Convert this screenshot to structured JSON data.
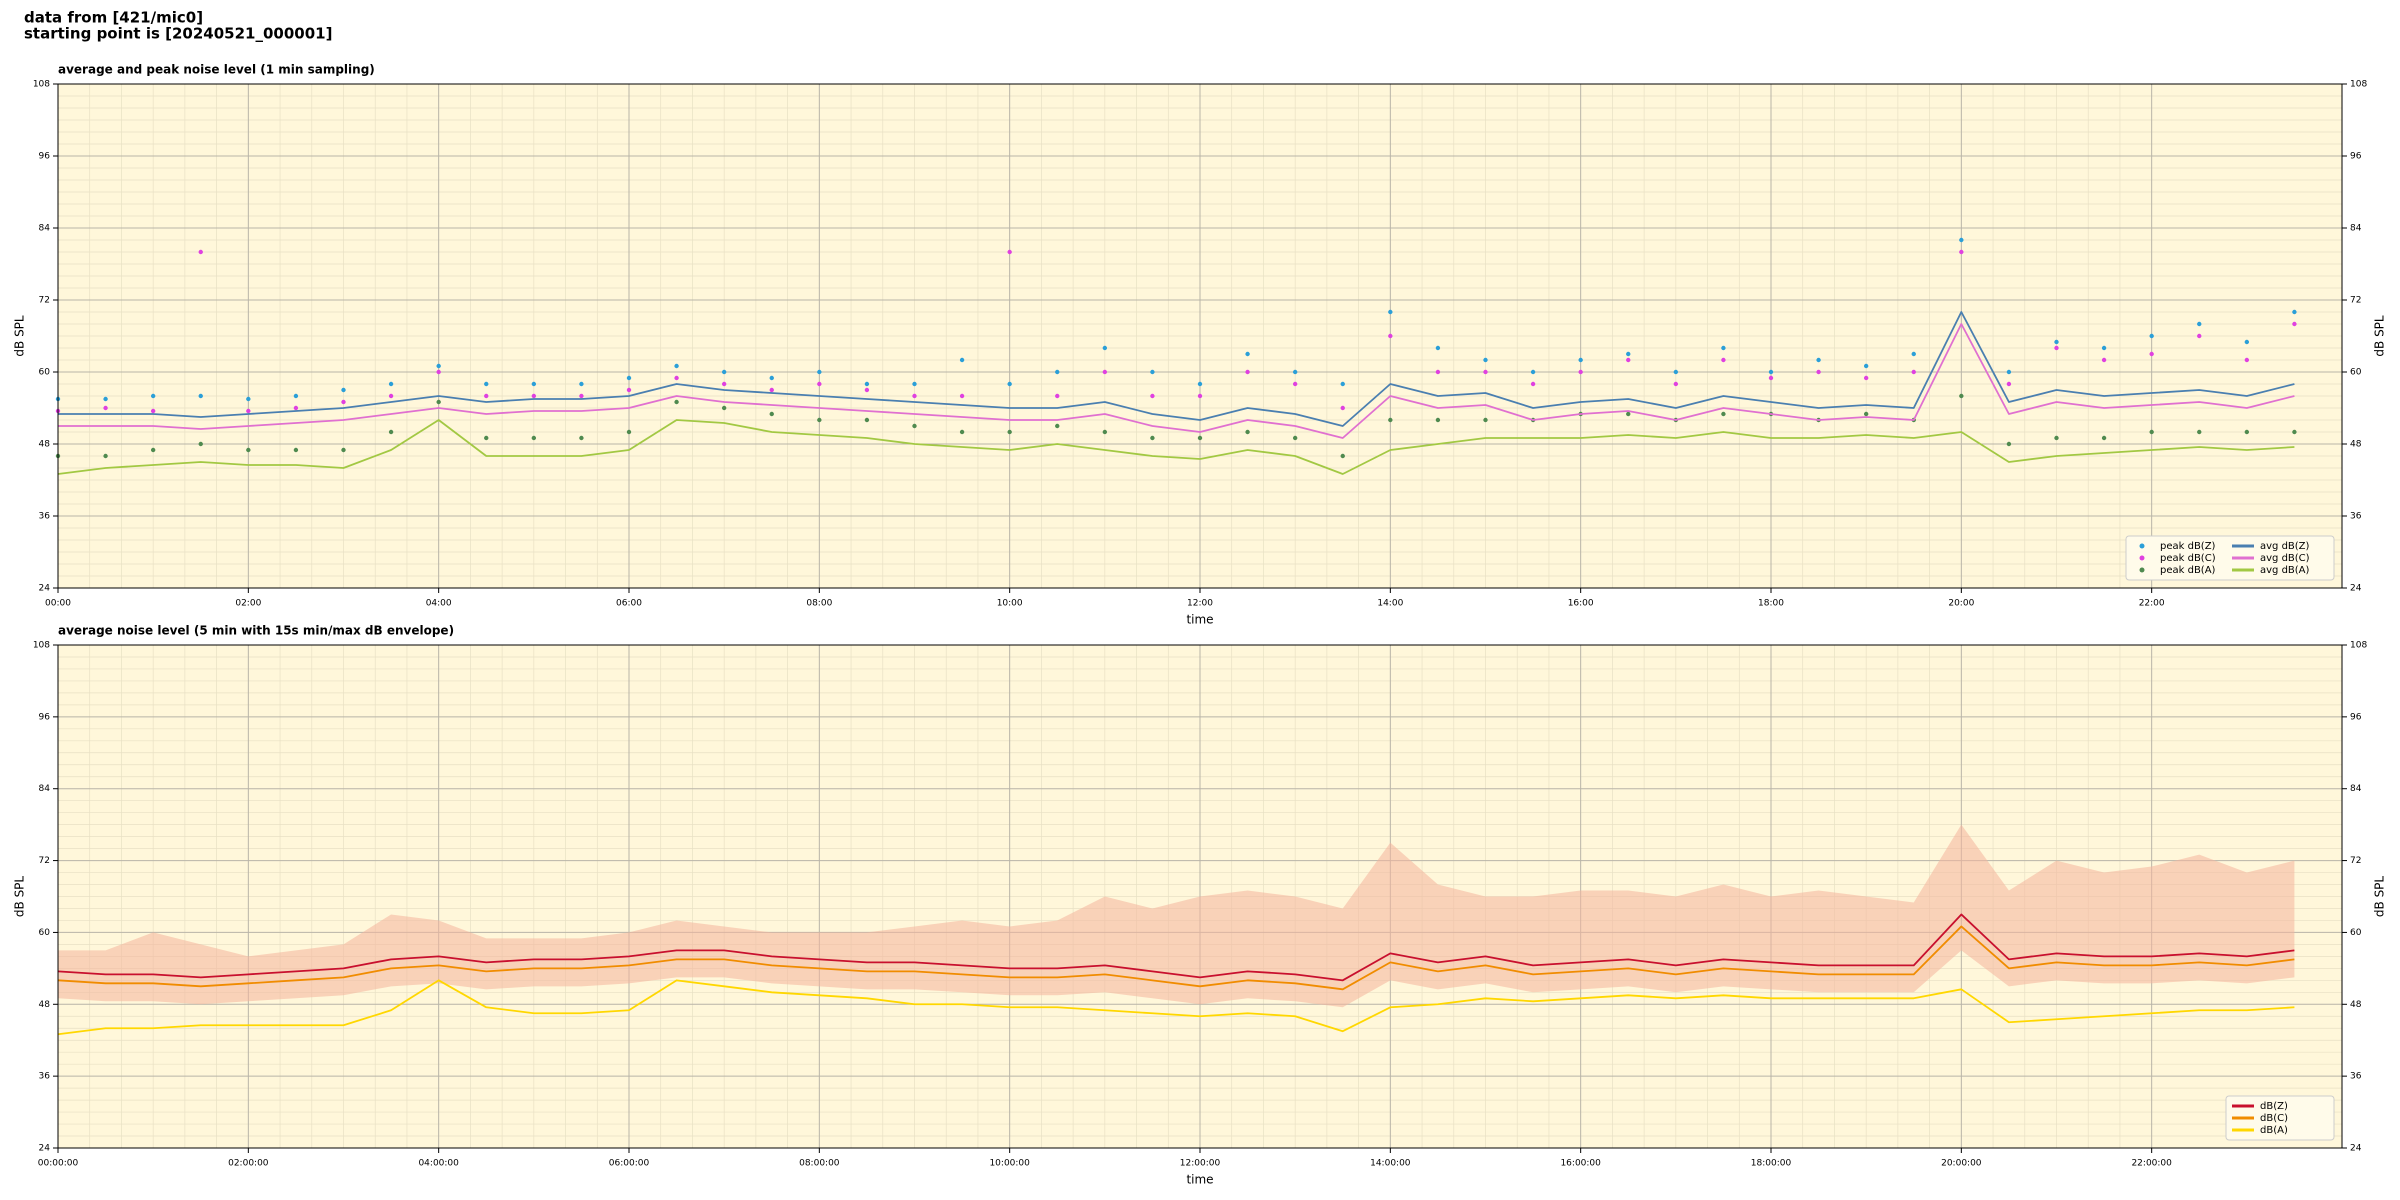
{
  "header": {
    "lines": [
      "data from [421/mic0]",
      "starting point is [20240521_000001]"
    ]
  },
  "chart_data": [
    {
      "type": "line",
      "title": "average and peak noise level (1 min sampling)",
      "xlabel": "time",
      "ylabel": "dB SPL",
      "x": [
        0,
        0.5,
        1,
        1.5,
        2,
        2.5,
        3,
        3.5,
        4,
        4.5,
        5,
        5.5,
        6,
        6.5,
        7,
        7.5,
        8,
        8.5,
        9,
        9.5,
        10,
        10.5,
        11,
        11.5,
        12,
        12.5,
        13,
        13.5,
        14,
        14.5,
        15,
        15.5,
        16,
        16.5,
        17,
        17.5,
        18,
        18.5,
        19,
        19.5,
        20,
        20.5,
        21,
        21.5,
        22,
        22.5,
        23,
        23.5
      ],
      "xlim": [
        0,
        24
      ],
      "xticks": [
        {
          "value": 0,
          "label": "00:00"
        },
        {
          "value": 2,
          "label": "02:00"
        },
        {
          "value": 4,
          "label": "04:00"
        },
        {
          "value": 6,
          "label": "06:00"
        },
        {
          "value": 8,
          "label": "08:00"
        },
        {
          "value": 10,
          "label": "10:00"
        },
        {
          "value": 12,
          "label": "12:00"
        },
        {
          "value": 14,
          "label": "14:00"
        },
        {
          "value": 16,
          "label": "16:00"
        },
        {
          "value": 18,
          "label": "18:00"
        },
        {
          "value": 20,
          "label": "20:00"
        },
        {
          "value": 22,
          "label": "22:00"
        }
      ],
      "ylim": [
        24,
        108
      ],
      "yticks": [
        24,
        36,
        48,
        60,
        72,
        84,
        96,
        108
      ],
      "grid": true,
      "legend": {
        "loc": "lower right",
        "ncol": 2
      },
      "series": [
        {
          "name": "peak dB(Z)",
          "type": "scatter",
          "color": "#2a9fd8",
          "values": [
            55.5,
            55.5,
            56,
            56,
            55.5,
            56,
            57,
            58,
            61,
            58,
            58,
            58,
            59,
            61,
            60,
            59,
            60,
            58,
            58,
            62,
            58,
            60,
            64,
            60,
            58,
            63,
            60,
            58,
            70,
            64,
            62,
            60,
            62,
            63,
            60,
            64,
            60,
            62,
            61,
            63,
            82,
            60,
            65,
            64,
            66,
            68,
            65,
            70
          ]
        },
        {
          "name": "peak dB(C)",
          "type": "scatter",
          "color": "#e040e0",
          "values": [
            53.5,
            54,
            53.5,
            80,
            53.5,
            54,
            55,
            56,
            60,
            56,
            56,
            56,
            57,
            59,
            58,
            57,
            58,
            57,
            56,
            56,
            80,
            56,
            60,
            56,
            56,
            60,
            58,
            54,
            66,
            60,
            60,
            58,
            60,
            62,
            58,
            62,
            59,
            60,
            59,
            60,
            80,
            58,
            64,
            62,
            63,
            66,
            62,
            68
          ]
        },
        {
          "name": "peak dB(A)",
          "type": "scatter",
          "color": "#4f8a4f",
          "values": [
            46,
            46,
            47,
            48,
            47,
            47,
            47,
            50,
            55,
            49,
            49,
            49,
            50,
            55,
            54,
            53,
            52,
            52,
            51,
            50,
            50,
            51,
            50,
            49,
            49,
            50,
            49,
            46,
            52,
            52,
            52,
            52,
            53,
            53,
            52,
            53,
            53,
            52,
            53,
            52,
            56,
            48,
            49,
            49,
            50,
            50,
            50,
            50
          ]
        },
        {
          "name": "avg dB(Z)",
          "type": "line",
          "color": "#4a7fb0",
          "values": [
            53,
            53,
            53,
            52.5,
            53,
            53.5,
            54,
            55,
            56,
            55,
            55.5,
            55.5,
            56,
            58,
            57,
            56.5,
            56,
            55.5,
            55,
            54.5,
            54,
            54,
            55,
            53,
            52,
            54,
            53,
            51,
            58,
            56,
            56.5,
            54,
            55,
            55.5,
            54,
            56,
            55,
            54,
            54.5,
            54,
            70,
            55,
            57,
            56,
            56.5,
            57,
            56,
            58
          ]
        },
        {
          "name": "avg dB(C)",
          "type": "line",
          "color": "#e070d0",
          "values": [
            51,
            51,
            51,
            50.5,
            51,
            51.5,
            52,
            53,
            54,
            53,
            53.5,
            53.5,
            54,
            56,
            55,
            54.5,
            54,
            53.5,
            53,
            52.5,
            52,
            52,
            53,
            51,
            50,
            52,
            51,
            49,
            56,
            54,
            54.5,
            52,
            53,
            53.5,
            52,
            54,
            53,
            52,
            52.5,
            52,
            68,
            53,
            55,
            54,
            54.5,
            55,
            54,
            56
          ]
        },
        {
          "name": "avg dB(A)",
          "type": "line",
          "color": "#a2c843",
          "values": [
            43,
            44,
            44.5,
            45,
            44.5,
            44.5,
            44,
            47,
            52,
            46,
            46,
            46,
            47,
            52,
            51.5,
            50,
            49.5,
            49,
            48,
            47.5,
            47,
            48,
            47,
            46,
            45.5,
            47,
            46,
            43,
            47,
            48,
            49,
            49,
            49,
            49.5,
            49,
            50,
            49,
            49,
            49.5,
            49,
            50,
            45,
            46,
            46.5,
            47,
            47.5,
            47,
            47.5
          ]
        }
      ]
    },
    {
      "type": "line",
      "title": "average noise level (5 min with 15s min/max dB envelope)",
      "xlabel": "time",
      "ylabel": "dB SPL",
      "x": [
        0,
        0.5,
        1,
        1.5,
        2,
        2.5,
        3,
        3.5,
        4,
        4.5,
        5,
        5.5,
        6,
        6.5,
        7,
        7.5,
        8,
        8.5,
        9,
        9.5,
        10,
        10.5,
        11,
        11.5,
        12,
        12.5,
        13,
        13.5,
        14,
        14.5,
        15,
        15.5,
        16,
        16.5,
        17,
        17.5,
        18,
        18.5,
        19,
        19.5,
        20,
        20.5,
        21,
        21.5,
        22,
        22.5,
        23,
        23.5
      ],
      "xlim": [
        0,
        24
      ],
      "xticks": [
        {
          "value": 0,
          "label": "00:00:00"
        },
        {
          "value": 2,
          "label": "02:00:00"
        },
        {
          "value": 4,
          "label": "04:00:00"
        },
        {
          "value": 6,
          "label": "06:00:00"
        },
        {
          "value": 8,
          "label": "08:00:00"
        },
        {
          "value": 10,
          "label": "10:00:00"
        },
        {
          "value": 12,
          "label": "12:00:00"
        },
        {
          "value": 14,
          "label": "14:00:00"
        },
        {
          "value": 16,
          "label": "16:00:00"
        },
        {
          "value": 18,
          "label": "18:00:00"
        },
        {
          "value": 20,
          "label": "20:00:00"
        },
        {
          "value": 22,
          "label": "22:00:00"
        }
      ],
      "ylim": [
        24,
        108
      ],
      "yticks": [
        24,
        36,
        48,
        60,
        72,
        84,
        96,
        108
      ],
      "grid": true,
      "legend": {
        "loc": "lower right",
        "ncol": 1
      },
      "band": {
        "color": "#f4b49c",
        "low": [
          49,
          48.5,
          48.5,
          48,
          48.5,
          49,
          49.5,
          51,
          51.5,
          50.5,
          51,
          51,
          51.5,
          52.5,
          52.5,
          51.5,
          51,
          50.5,
          50.5,
          50,
          49.5,
          49.5,
          50,
          49,
          48,
          49,
          48.5,
          47.5,
          52,
          50.5,
          51.5,
          50,
          50.5,
          51,
          50,
          51,
          50.5,
          50,
          50,
          50,
          57,
          51,
          52,
          51.5,
          51.5,
          52,
          51.5,
          52.5
        ],
        "high": [
          57,
          57,
          60,
          58,
          56,
          57,
          58,
          63,
          62,
          59,
          59,
          59,
          60,
          62,
          61,
          60,
          60,
          60,
          61,
          62,
          61,
          62,
          66,
          64,
          66,
          67,
          66,
          64,
          75,
          68,
          66,
          66,
          67,
          67,
          66,
          68,
          66,
          67,
          66,
          65,
          78,
          67,
          72,
          70,
          71,
          73,
          70,
          72
        ]
      },
      "series": [
        {
          "name": "dB(Z)",
          "type": "line",
          "color": "#c8102e",
          "values": [
            53.5,
            53,
            53,
            52.5,
            53,
            53.5,
            54,
            55.5,
            56,
            55,
            55.5,
            55.5,
            56,
            57,
            57,
            56,
            55.5,
            55,
            55,
            54.5,
            54,
            54,
            54.5,
            53.5,
            52.5,
            53.5,
            53,
            52,
            56.5,
            55,
            56,
            54.5,
            55,
            55.5,
            54.5,
            55.5,
            55,
            54.5,
            54.5,
            54.5,
            63,
            55.5,
            56.5,
            56,
            56,
            56.5,
            56,
            57
          ]
        },
        {
          "name": "dB(C)",
          "type": "line",
          "color": "#f08c00",
          "values": [
            52,
            51.5,
            51.5,
            51,
            51.5,
            52,
            52.5,
            54,
            54.5,
            53.5,
            54,
            54,
            54.5,
            55.5,
            55.5,
            54.5,
            54,
            53.5,
            53.5,
            53,
            52.5,
            52.5,
            53,
            52,
            51,
            52,
            51.5,
            50.5,
            55,
            53.5,
            54.5,
            53,
            53.5,
            54,
            53,
            54,
            53.5,
            53,
            53,
            53,
            61,
            54,
            55,
            54.5,
            54.5,
            55,
            54.5,
            55.5
          ]
        },
        {
          "name": "dB(A)",
          "type": "line",
          "color": "#ffd700",
          "values": [
            43,
            44,
            44,
            44.5,
            44.5,
            44.5,
            44.5,
            47,
            52,
            47.5,
            46.5,
            46.5,
            47,
            52,
            51,
            50,
            49.5,
            49,
            48,
            48,
            47.5,
            47.5,
            47,
            46.5,
            46,
            46.5,
            46,
            43.5,
            47.5,
            48,
            49,
            48.5,
            49,
            49.5,
            49,
            49.5,
            49,
            49,
            49,
            49,
            50.5,
            45,
            45.5,
            46,
            46.5,
            47,
            47,
            47.5
          ]
        }
      ]
    }
  ]
}
